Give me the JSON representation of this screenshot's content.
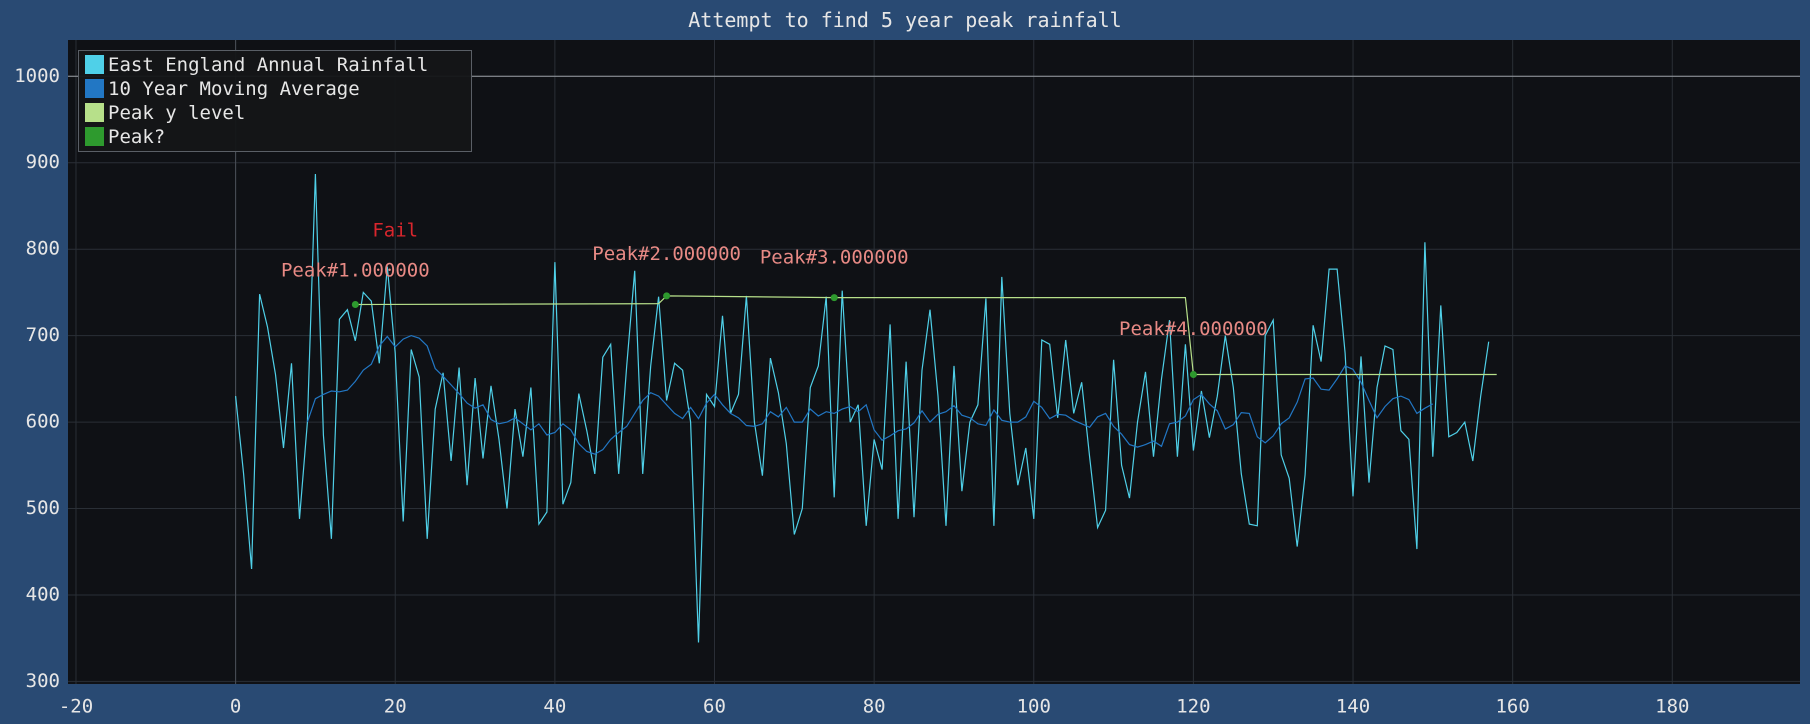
{
  "window": {
    "title": "Attempt to find 5 year peak rainfall"
  },
  "colors": {
    "background": "#294a73",
    "plot_bg": "#0f1115",
    "grid": "#2a2f36",
    "axis_text": "#e6e6e6",
    "annotation_peak": "#e88a85",
    "annotation_fail": "#d9262d"
  },
  "legend": {
    "items": [
      {
        "label": "East England Annual Rainfall",
        "color": "#4fd0e8"
      },
      {
        "label": "10 Year Moving Average",
        "color": "#2277c4"
      },
      {
        "label": "Peak y level",
        "color": "#b7e08a"
      },
      {
        "label": "Peak?",
        "color": "#2e9a2e"
      }
    ]
  },
  "chart_data": {
    "type": "line",
    "title": "Attempt to find 5 year peak rainfall",
    "xlabel": "",
    "ylabel": "",
    "xlim": [
      -21,
      196
    ],
    "ylim": [
      297,
      1042
    ],
    "x_ticks": [
      -20,
      0,
      20,
      40,
      60,
      80,
      100,
      120,
      140,
      160,
      180
    ],
    "y_ticks": [
      300,
      400,
      500,
      600,
      700,
      800,
      900,
      1000
    ],
    "grid": true,
    "legend_position": "top-left",
    "series": [
      {
        "name": "East England Annual Rainfall",
        "color": "#4fd0e8",
        "x_start": 0,
        "values": [
          630,
          540,
          430,
          748,
          710,
          655,
          570,
          668,
          488,
          600,
          887,
          585,
          465,
          719,
          730,
          694,
          750,
          740,
          668,
          780,
          680,
          485,
          684,
          652,
          465,
          615,
          657,
          555,
          663,
          527,
          651,
          558,
          642,
          580,
          500,
          615,
          560,
          640,
          482,
          496,
          785,
          505,
          530,
          633,
          590,
          540,
          675,
          690,
          540,
          665,
          775,
          540,
          665,
          745,
          625,
          668,
          660,
          600,
          345,
          632,
          618,
          723,
          610,
          632,
          746,
          600,
          538,
          674,
          634,
          575,
          470,
          500,
          640,
          665,
          745,
          513,
          752,
          600,
          620,
          480,
          580,
          545,
          713,
          488,
          670,
          490,
          660,
          730,
          630,
          480,
          665,
          520,
          600,
          620,
          743,
          480,
          768,
          610,
          527,
          570,
          488,
          695,
          690,
          605,
          695,
          610,
          646,
          560,
          478,
          498,
          672,
          550,
          512,
          600,
          658,
          560,
          650,
          718,
          560,
          690,
          567,
          636,
          582,
          630,
          700,
          640,
          540,
          482,
          480,
          700,
          718,
          562,
          535,
          456,
          539,
          712,
          670,
          777,
          777,
          680,
          514,
          676,
          530,
          640,
          688,
          684,
          590,
          580,
          453,
          808,
          560,
          735,
          583,
          588,
          600,
          555,
          630,
          693
        ]
      },
      {
        "name": "10 Year Moving Average",
        "color": "#2277c4",
        "x_start": 9,
        "values": [
          600,
          627,
          632,
          636,
          635,
          637,
          647,
          660,
          667,
          688,
          699,
          687,
          696,
          700,
          697,
          688,
          662,
          653,
          643,
          633,
          622,
          616,
          620,
          603,
          598,
          600,
          605,
          598,
          591,
          598,
          585,
          588,
          598,
          591,
          575,
          566,
          563,
          568,
          580,
          588,
          595,
          610,
          625,
          634,
          630,
          620,
          610,
          604,
          617,
          604,
          622,
          632,
          620,
          610,
          605,
          596,
          595,
          598,
          612,
          606,
          617,
          600,
          600,
          615,
          607,
          612,
          610,
          615,
          618,
          612,
          620,
          591,
          579,
          584,
          590,
          592,
          599,
          613,
          600,
          609,
          612,
          619,
          608,
          605,
          598,
          596,
          614,
          602,
          600,
          600,
          606,
          624,
          617,
          604,
          609,
          608,
          602,
          598,
          594,
          606,
          610,
          595,
          586,
          574,
          571,
          574,
          578,
          572,
          598,
          600,
          607,
          626,
          632,
          621,
          613,
          592,
          597,
          611,
          610,
          583,
          576,
          584,
          598,
          605,
          623,
          650,
          651,
          638,
          637,
          650,
          665,
          661,
          646,
          625,
          605,
          618,
          627,
          630,
          626,
          610,
          616,
          621
        ]
      },
      {
        "name": "Peak y level",
        "color": "#b7e08a",
        "points": [
          [
            15,
            736
          ],
          [
            53,
            737
          ],
          [
            54,
            746
          ],
          [
            75,
            744
          ],
          [
            119,
            744
          ],
          [
            120,
            655
          ],
          [
            158,
            655
          ]
        ]
      },
      {
        "name": "Peak?",
        "color": "#2e9a2e",
        "points": [
          [
            15,
            736
          ],
          [
            54,
            746
          ],
          [
            75,
            744
          ],
          [
            120,
            655
          ]
        ]
      }
    ],
    "annotations": [
      {
        "text": "Peak#1.000000",
        "x": 15,
        "y": 775,
        "color": "#e88a85"
      },
      {
        "text": "Peak#2.000000",
        "x": 54,
        "y": 794,
        "color": "#e88a85"
      },
      {
        "text": "Peak#3.000000",
        "x": 75,
        "y": 790,
        "color": "#e88a85"
      },
      {
        "text": "Peak#4.000000",
        "x": 120,
        "y": 707,
        "color": "#e88a85"
      },
      {
        "text": "Fail",
        "x": 20,
        "y": 821,
        "color": "#d9262d"
      }
    ]
  }
}
